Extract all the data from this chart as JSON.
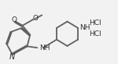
{
  "bg_color": "#f2f2f2",
  "line_color": "#606060",
  "text_color": "#303030",
  "line_width": 1.3,
  "font_size": 6.5,
  "xlim": [
    0,
    10
  ],
  "ylim": [
    0,
    5.5
  ]
}
